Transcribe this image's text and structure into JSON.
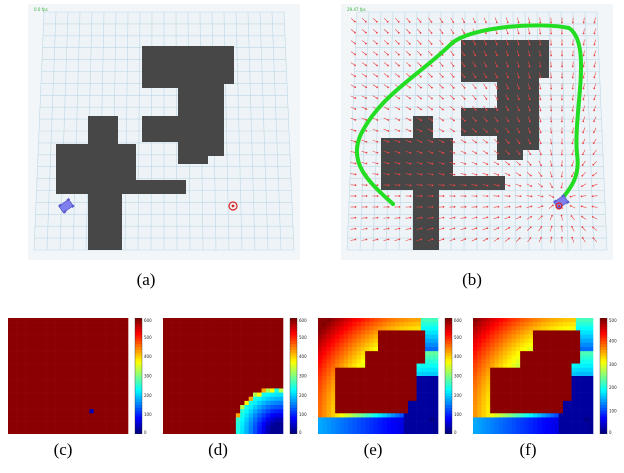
{
  "panels": {
    "a": {
      "caption": "(a)",
      "corner_text": "0.0 fps"
    },
    "b": {
      "caption": "(b)",
      "corner_text": "29.47 fps"
    },
    "c": {
      "caption": "(c)"
    },
    "d": {
      "caption": "(d)"
    },
    "e": {
      "caption": "(e)"
    },
    "f": {
      "caption": "(f)"
    }
  },
  "colorbar": {
    "ticks_default": [
      "0",
      "100",
      "200",
      "300",
      "400",
      "500",
      "600"
    ],
    "ticks_f": [
      "0",
      "100",
      "200",
      "300",
      "400",
      "500"
    ]
  },
  "colors": {
    "obstacle": "#474747",
    "grid": "#bcd8e6",
    "path": "#22dd22",
    "arrow": "#ee4444",
    "robot": "#7f7fee",
    "target": "#dd2222",
    "heat_high": "#8b0000"
  },
  "icons": {
    "robot": "robot-icon",
    "target": "target-icon"
  }
}
